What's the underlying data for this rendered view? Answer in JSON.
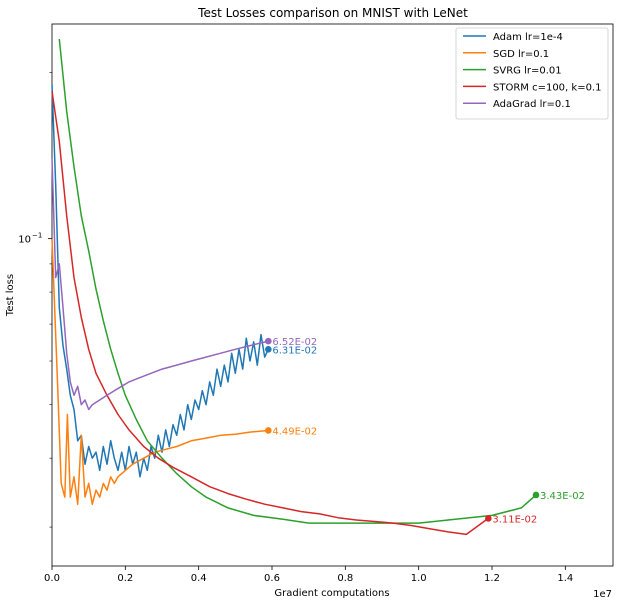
{
  "chart_data": {
    "type": "line",
    "title": "Test Losses comparison on MNIST with LeNet",
    "xlabel": "Gradient computations",
    "ylabel": "Test loss",
    "x_scale_label": "1e7",
    "xlim": [
      0,
      15300000
    ],
    "ylim_log": [
      0.0255,
      0.245
    ],
    "x_ticks": [
      {
        "value": 0,
        "label": "0.0"
      },
      {
        "value": 2000000,
        "label": "0.2"
      },
      {
        "value": 4000000,
        "label": "0.4"
      },
      {
        "value": 6000000,
        "label": "0.6"
      },
      {
        "value": 8000000,
        "label": "0.8"
      },
      {
        "value": 10000000,
        "label": "1.0"
      },
      {
        "value": 12000000,
        "label": "1.2"
      },
      {
        "value": 14000000,
        "label": "1.4"
      }
    ],
    "y_major_ticks": [
      {
        "value": 0.1,
        "label": "10",
        "exp": "−1"
      }
    ],
    "y_minor_ticks": [
      0.03,
      0.04,
      0.05,
      0.06,
      0.07,
      0.08,
      0.09,
      0.2
    ],
    "legend_position": "top-right",
    "grid": false,
    "series": [
      {
        "name": "Adam lr=1e-4",
        "color": "#1f77b4",
        "end_label": "6.31E-02",
        "points": [
          [
            0,
            0.19
          ],
          [
            100000,
            0.125
          ],
          [
            200000,
            0.075
          ],
          [
            300000,
            0.064
          ],
          [
            400000,
            0.058
          ],
          [
            500000,
            0.052
          ],
          [
            600000,
            0.049
          ],
          [
            700000,
            0.043
          ],
          [
            800000,
            0.044
          ],
          [
            900000,
            0.039
          ],
          [
            1000000,
            0.042
          ],
          [
            1100000,
            0.04
          ],
          [
            1200000,
            0.041
          ],
          [
            1300000,
            0.038
          ],
          [
            1400000,
            0.042
          ],
          [
            1500000,
            0.039
          ],
          [
            1600000,
            0.043
          ],
          [
            1700000,
            0.04
          ],
          [
            1800000,
            0.038
          ],
          [
            1900000,
            0.041
          ],
          [
            2000000,
            0.038
          ],
          [
            2100000,
            0.042
          ],
          [
            2200000,
            0.039
          ],
          [
            2300000,
            0.041
          ],
          [
            2400000,
            0.037
          ],
          [
            2500000,
            0.04
          ],
          [
            2600000,
            0.038
          ],
          [
            2700000,
            0.042
          ],
          [
            2800000,
            0.04
          ],
          [
            2900000,
            0.044
          ],
          [
            3000000,
            0.041
          ],
          [
            3100000,
            0.045
          ],
          [
            3200000,
            0.042
          ],
          [
            3300000,
            0.046
          ],
          [
            3400000,
            0.044
          ],
          [
            3500000,
            0.048
          ],
          [
            3600000,
            0.045
          ],
          [
            3700000,
            0.05
          ],
          [
            3800000,
            0.047
          ],
          [
            3900000,
            0.051
          ],
          [
            4000000,
            0.049
          ],
          [
            4100000,
            0.053
          ],
          [
            4200000,
            0.05
          ],
          [
            4300000,
            0.055
          ],
          [
            4400000,
            0.052
          ],
          [
            4500000,
            0.058
          ],
          [
            4600000,
            0.054
          ],
          [
            4700000,
            0.059
          ],
          [
            4800000,
            0.055
          ],
          [
            4900000,
            0.062
          ],
          [
            5000000,
            0.057
          ],
          [
            5100000,
            0.063
          ],
          [
            5200000,
            0.058
          ],
          [
            5300000,
            0.066
          ],
          [
            5400000,
            0.06
          ],
          [
            5500000,
            0.065
          ],
          [
            5600000,
            0.059
          ],
          [
            5700000,
            0.067
          ],
          [
            5800000,
            0.061
          ],
          [
            5900000,
            0.063
          ]
        ]
      },
      {
        "name": "SGD lr=0.1",
        "color": "#ff7f0e",
        "end_label": "4.49E-02",
        "points": [
          [
            0,
            0.1
          ],
          [
            150000,
            0.055
          ],
          [
            250000,
            0.036
          ],
          [
            350000,
            0.034
          ],
          [
            420000,
            0.048
          ],
          [
            500000,
            0.034
          ],
          [
            600000,
            0.037
          ],
          [
            700000,
            0.033
          ],
          [
            800000,
            0.044
          ],
          [
            900000,
            0.034
          ],
          [
            1000000,
            0.036
          ],
          [
            1100000,
            0.033
          ],
          [
            1200000,
            0.035
          ],
          [
            1300000,
            0.034
          ],
          [
            1400000,
            0.036
          ],
          [
            1500000,
            0.035
          ],
          [
            1600000,
            0.037
          ],
          [
            1700000,
            0.036
          ],
          [
            1800000,
            0.037
          ],
          [
            2000000,
            0.038
          ],
          [
            2200000,
            0.039
          ],
          [
            2500000,
            0.04
          ],
          [
            2800000,
            0.041
          ],
          [
            3100000,
            0.0415
          ],
          [
            3400000,
            0.042
          ],
          [
            3800000,
            0.043
          ],
          [
            4200000,
            0.0435
          ],
          [
            4600000,
            0.044
          ],
          [
            5000000,
            0.0442
          ],
          [
            5400000,
            0.0446
          ],
          [
            5900000,
            0.0449
          ]
        ]
      },
      {
        "name": "SVRG lr=0.01",
        "color": "#2ca02c",
        "end_label": "3.43E-02",
        "points": [
          [
            200000,
            0.23
          ],
          [
            400000,
            0.17
          ],
          [
            600000,
            0.135
          ],
          [
            800000,
            0.11
          ],
          [
            1000000,
            0.095
          ],
          [
            1200000,
            0.081
          ],
          [
            1400000,
            0.071
          ],
          [
            1600000,
            0.063
          ],
          [
            1800000,
            0.057
          ],
          [
            2000000,
            0.052
          ],
          [
            2300000,
            0.047
          ],
          [
            2600000,
            0.043
          ],
          [
            3000000,
            0.04
          ],
          [
            3400000,
            0.0375
          ],
          [
            3800000,
            0.0355
          ],
          [
            4200000,
            0.034
          ],
          [
            4800000,
            0.0325
          ],
          [
            5500000,
            0.0315
          ],
          [
            6300000,
            0.031
          ],
          [
            7000000,
            0.0305
          ],
          [
            8000000,
            0.0305
          ],
          [
            9000000,
            0.0305
          ],
          [
            10000000,
            0.0305
          ],
          [
            11000000,
            0.031
          ],
          [
            12000000,
            0.0315
          ],
          [
            12800000,
            0.0325
          ],
          [
            13200000,
            0.0343
          ]
        ]
      },
      {
        "name": "STORM c=100, k=0.1",
        "color": "#d62728",
        "end_label": "3.11E-02",
        "points": [
          [
            0,
            0.185
          ],
          [
            200000,
            0.15
          ],
          [
            400000,
            0.11
          ],
          [
            600000,
            0.085
          ],
          [
            800000,
            0.072
          ],
          [
            1000000,
            0.063
          ],
          [
            1200000,
            0.057
          ],
          [
            1500000,
            0.052
          ],
          [
            1800000,
            0.048
          ],
          [
            2100000,
            0.045
          ],
          [
            2500000,
            0.042
          ],
          [
            2900000,
            0.04
          ],
          [
            3300000,
            0.0385
          ],
          [
            3800000,
            0.037
          ],
          [
            4300000,
            0.0355
          ],
          [
            4800000,
            0.0345
          ],
          [
            5300000,
            0.0337
          ],
          [
            5800000,
            0.033
          ],
          [
            6300000,
            0.0325
          ],
          [
            6800000,
            0.032
          ],
          [
            7300000,
            0.0317
          ],
          [
            7800000,
            0.0312
          ],
          [
            8300000,
            0.0309
          ],
          [
            8800000,
            0.0307
          ],
          [
            9300000,
            0.0305
          ],
          [
            9800000,
            0.0302
          ],
          [
            10300000,
            0.0298
          ],
          [
            10800000,
            0.0294
          ],
          [
            11300000,
            0.0291
          ],
          [
            11900000,
            0.0311
          ]
        ]
      },
      {
        "name": "AdaGrad lr=0.1",
        "color": "#9467bd",
        "end_label": "6.52E-02",
        "points": [
          [
            0,
            0.14
          ],
          [
            100000,
            0.085
          ],
          [
            200000,
            0.09
          ],
          [
            300000,
            0.075
          ],
          [
            400000,
            0.062
          ],
          [
            500000,
            0.055
          ],
          [
            600000,
            0.052
          ],
          [
            700000,
            0.054
          ],
          [
            800000,
            0.05
          ],
          [
            900000,
            0.051
          ],
          [
            1000000,
            0.049
          ],
          [
            1100000,
            0.05
          ],
          [
            1300000,
            0.051
          ],
          [
            1500000,
            0.052
          ],
          [
            1700000,
            0.053
          ],
          [
            1900000,
            0.054
          ],
          [
            2100000,
            0.055
          ],
          [
            2400000,
            0.056
          ],
          [
            2700000,
            0.057
          ],
          [
            3000000,
            0.058
          ],
          [
            3400000,
            0.059
          ],
          [
            3800000,
            0.06
          ],
          [
            4200000,
            0.061
          ],
          [
            4600000,
            0.062
          ],
          [
            5000000,
            0.063
          ],
          [
            5400000,
            0.064
          ],
          [
            5900000,
            0.0652
          ]
        ]
      }
    ]
  }
}
